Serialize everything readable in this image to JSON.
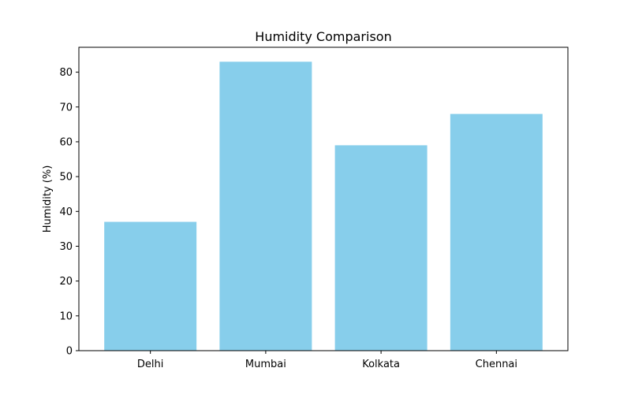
{
  "chart_data": {
    "type": "bar",
    "title": "Humidity Comparison",
    "xlabel": "",
    "ylabel": "Humidity (%)",
    "categories": [
      "Delhi",
      "Mumbai",
      "Kolkata",
      "Chennai"
    ],
    "values": [
      37,
      83,
      59,
      68
    ],
    "ylim": [
      0,
      87.15
    ],
    "yticks": [
      0,
      10,
      20,
      30,
      40,
      50,
      60,
      70,
      80
    ],
    "bar_color": "#87CEEB",
    "grid": false,
    "legend": "none"
  }
}
